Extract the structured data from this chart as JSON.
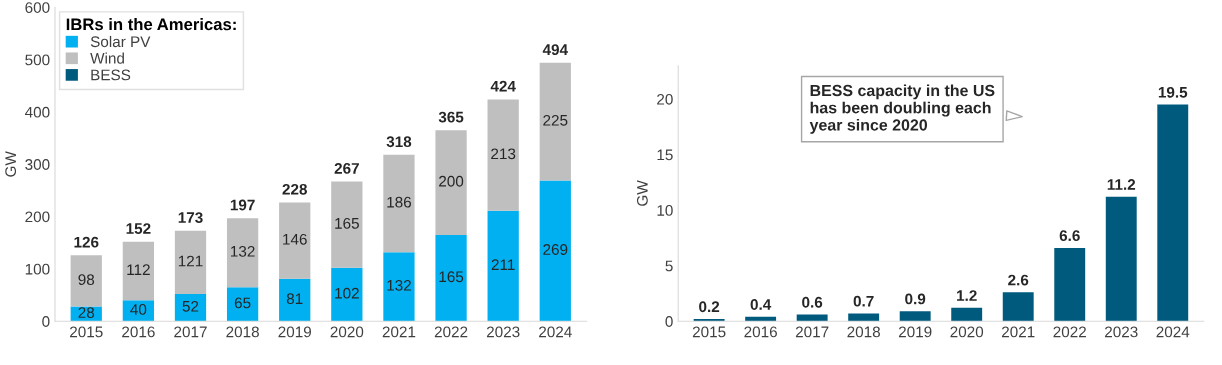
{
  "chart_data": [
    {
      "type": "bar",
      "stacked": true,
      "categories": [
        "2015",
        "2016",
        "2017",
        "2018",
        "2019",
        "2020",
        "2021",
        "2022",
        "2023",
        "2024"
      ],
      "ylabel": "GW",
      "ylim": [
        0,
        600
      ],
      "yticks": [
        0,
        100,
        200,
        300,
        400,
        500,
        600
      ],
      "legend": "top left",
      "legend_title": "IBRs in the Americas:",
      "data_labels": true,
      "grid": false,
      "series": [
        {
          "name": "Solar PV",
          "color": "#00b0f0",
          "values": [
            28,
            40,
            52,
            65,
            81,
            102,
            132,
            165,
            211,
            269
          ]
        },
        {
          "name": "Wind",
          "color": "#bfbfbf",
          "values": [
            98,
            112,
            121,
            132,
            146,
            165,
            186,
            200,
            213,
            225
          ]
        },
        {
          "name": "BESS",
          "color": "#005a7e",
          "values": [
            null,
            null,
            null,
            null,
            null,
            null,
            null,
            null,
            null,
            null
          ]
        }
      ],
      "totals": [
        "126",
        "152",
        "173",
        "197",
        "228",
        "267",
        "318",
        "365",
        "424",
        "494"
      ]
    },
    {
      "type": "bar",
      "categories": [
        "2015",
        "2016",
        "2017",
        "2018",
        "2019",
        "2020",
        "2021",
        "2022",
        "2023",
        "2024"
      ],
      "ylabel": "GW",
      "ylim": [
        0,
        23
      ],
      "yticks": [
        0,
        5,
        10,
        15,
        20
      ],
      "data_labels": true,
      "grid": false,
      "color": "#005a7e",
      "values": [
        0.2,
        0.4,
        0.6,
        0.7,
        0.9,
        1.2,
        2.6,
        6.6,
        11.2,
        19.5
      ],
      "annotations": [
        "BESS capacity in the US\nhas been doubling each\nyear since 2020"
      ]
    }
  ]
}
